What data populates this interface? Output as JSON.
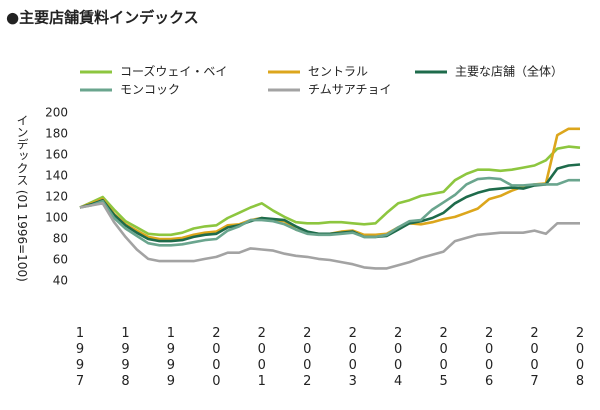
{
  "chart_data": {
    "type": "line",
    "title": "●主要店舗賃料インデックス",
    "y_label": "インデックス (01 1996=100)",
    "x": [
      1997,
      1997.25,
      1997.5,
      1997.75,
      1998,
      1998.25,
      1998.5,
      1998.75,
      1999,
      1999.25,
      1999.5,
      1999.75,
      2000,
      2000.25,
      2000.5,
      2000.75,
      2001,
      2001.25,
      2001.5,
      2001.75,
      2002,
      2002.25,
      2002.5,
      2002.75,
      2003,
      2003.25,
      2003.5,
      2003.75,
      2004,
      2004.25,
      2004.5,
      2004.75,
      2005,
      2005.25,
      2005.5,
      2005.75,
      2006,
      2006.25,
      2006.5,
      2006.75,
      2007,
      2007.25,
      2007.5,
      2007.75,
      2008
    ],
    "xlim": [
      1997,
      2008
    ],
    "xticks": [
      1997,
      1998,
      1999,
      2000,
      2001,
      2002,
      2003,
      2004,
      2005,
      2006,
      2007,
      2008
    ],
    "ylim": [
      20,
      200
    ],
    "yticks": [
      40,
      60,
      80,
      100,
      120,
      140,
      160,
      180,
      200
    ],
    "series": [
      {
        "name": "コーズウェイ・ベイ",
        "color": "#8dc63f",
        "values": [
          110,
          115,
          120,
          108,
          97,
          91,
          85,
          84,
          84,
          86,
          90,
          92,
          93,
          100,
          105,
          110,
          114,
          107,
          101,
          96,
          95,
          95,
          96,
          96,
          95,
          94,
          95,
          105,
          114,
          117,
          121,
          123,
          125,
          136,
          142,
          146,
          146,
          145,
          146,
          148,
          150,
          155,
          166,
          168,
          167
        ]
      },
      {
        "name": "セントラル",
        "color": "#dca61c",
        "values": [
          110,
          114,
          118,
          104,
          94,
          88,
          82,
          80,
          80,
          81,
          84,
          86,
          87,
          93,
          94,
          98,
          100,
          98,
          97,
          89,
          86,
          85,
          85,
          87,
          88,
          84,
          84,
          85,
          91,
          95,
          94,
          96,
          99,
          101,
          105,
          109,
          118,
          121,
          126,
          130,
          132,
          133,
          179,
          185,
          185
        ]
      },
      {
        "name": "主要な店舗（全体）",
        "color": "#1e6b4b",
        "values": [
          110,
          113,
          117,
          103,
          93,
          86,
          80,
          78,
          78,
          79,
          82,
          84,
          85,
          91,
          93,
          97,
          100,
          99,
          98,
          92,
          87,
          85,
          85,
          86,
          87,
          82,
          82,
          83,
          89,
          95,
          97,
          100,
          105,
          114,
          120,
          124,
          127,
          128,
          129,
          128,
          131,
          132,
          147,
          150,
          151
        ]
      },
      {
        "name": "モンコック",
        "color": "#6aa58e",
        "values": [
          110,
          112,
          116,
          100,
          90,
          83,
          76,
          74,
          74,
          75,
          77,
          79,
          80,
          88,
          92,
          98,
          98,
          97,
          94,
          89,
          85,
          84,
          84,
          85,
          86,
          82,
          82,
          84,
          91,
          97,
          98,
          108,
          115,
          122,
          132,
          137,
          138,
          137,
          131,
          131,
          132,
          132,
          132,
          136,
          136
        ]
      },
      {
        "name": "チムサアチョイ",
        "color": "#a3a3a3",
        "values": [
          110,
          112,
          114,
          96,
          82,
          70,
          61,
          59,
          59,
          59,
          59,
          61,
          63,
          67,
          67,
          71,
          70,
          69,
          66,
          64,
          63,
          61,
          60,
          58,
          56,
          53,
          52,
          52,
          55,
          58,
          62,
          65,
          68,
          78,
          81,
          84,
          85,
          86,
          86,
          86,
          88,
          85,
          95,
          95,
          95
        ]
      }
    ]
  }
}
